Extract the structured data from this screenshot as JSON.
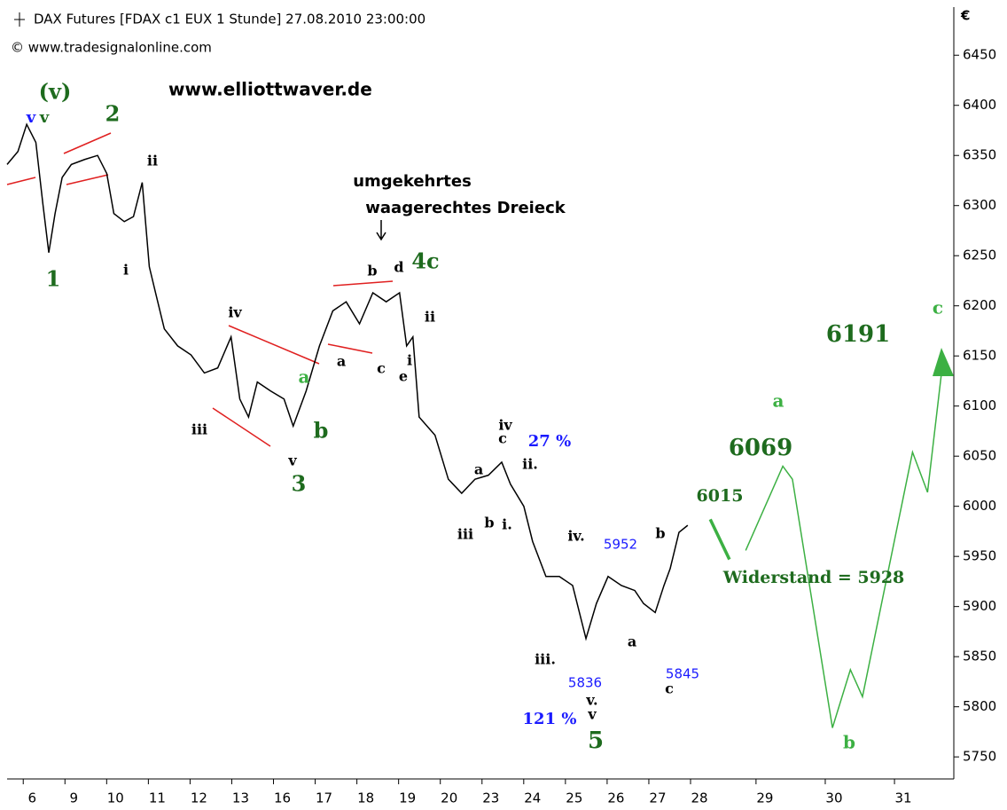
{
  "chart_data": {
    "type": "line",
    "title": "DAX Futures [FDAX c1 EUX  1 Stunde] 27.08.2010 23:00:00",
    "subtitle": "© www.tradesignalonline.com",
    "watermark": "www.elliottwaver.de",
    "y_label": "€",
    "xlim": [
      -0.6,
      22.1
    ],
    "ylim": [
      5728,
      6498
    ],
    "yticks": [
      5750,
      5800,
      5850,
      5900,
      5950,
      6000,
      6050,
      6100,
      6150,
      6200,
      6250,
      6300,
      6350,
      6400,
      6450
    ],
    "xticks": [
      {
        "value": 0,
        "label": "6"
      },
      {
        "value": 1,
        "label": "9"
      },
      {
        "value": 2,
        "label": "10"
      },
      {
        "value": 3,
        "label": "11"
      },
      {
        "value": 4,
        "label": "12"
      },
      {
        "value": 5,
        "label": "13"
      },
      {
        "value": 6,
        "label": "16"
      },
      {
        "value": 7,
        "label": "17"
      },
      {
        "value": 8,
        "label": "18"
      },
      {
        "value": 9,
        "label": "19"
      },
      {
        "value": 10,
        "label": "20"
      },
      {
        "value": 11,
        "label": "23"
      },
      {
        "value": 12,
        "label": "24"
      },
      {
        "value": 13,
        "label": "25"
      },
      {
        "value": 14,
        "label": "26"
      },
      {
        "value": 15,
        "label": "27"
      },
      {
        "value": 16,
        "label": "28"
      },
      {
        "value": 17.57,
        "label": "29"
      },
      {
        "value": 19.23,
        "label": "30"
      },
      {
        "value": 20.89,
        "label": "31"
      }
    ],
    "series": [
      {
        "color": "#000000",
        "x": [
          -0.6,
          -0.34,
          -0.13,
          0.09,
          0.26,
          0.4,
          0.55,
          0.72,
          0.94,
          1.26,
          1.57,
          1.79,
          1.96,
          2.21,
          2.43,
          2.64,
          2.81,
          2.96,
          3.17,
          3.49,
          3.81,
          4.13,
          4.45,
          4.77,
          4.98,
          5.19,
          5.4,
          5.72,
          6.04,
          6.26,
          6.57,
          6.89,
          7.21,
          7.53,
          7.85,
          8.17,
          8.49,
          8.81,
          8.98,
          9.13,
          9.28,
          9.66,
          9.98,
          10.3,
          10.62,
          10.94,
          11.26,
          11.47,
          11.79,
          12.0,
          12.32,
          12.64,
          12.96,
          13.28,
          13.53,
          13.81,
          14.13,
          14.45,
          14.66,
          14.94,
          15.15,
          15.3,
          15.51,
          15.72
        ],
        "values": [
          6341,
          6354,
          6381,
          6363,
          6301,
          6253,
          6292,
          6328,
          6341,
          6346,
          6350,
          6332,
          6292,
          6284,
          6289,
          6323,
          6239,
          6213,
          6177,
          6160,
          6151,
          6133,
          6138,
          6169,
          6107,
          6089,
          6124,
          6115,
          6107,
          6080,
          6115,
          6160,
          6195,
          6204,
          6182,
          6213,
          6204,
          6213,
          6160,
          6169,
          6089,
          6071,
          6027,
          6013,
          6027,
          6031,
          6044,
          6022,
          6000,
          5965,
          5930,
          5930,
          5921,
          5868,
          5903,
          5930,
          5921,
          5916,
          5903,
          5894,
          5921,
          5938,
          5974,
          5981
        ]
      },
      {
        "color": "#3cb043",
        "x": [
          16.26,
          16.72
        ],
        "values": [
          5987,
          5947
        ]
      },
      {
        "color": "#3cb043",
        "x": [
          17.11,
          18.0,
          18.23,
          19.19,
          19.62,
          19.91,
          21.11,
          21.47,
          21.83
        ],
        "values": [
          5956,
          6040,
          6027,
          5779,
          5837,
          5810,
          6054,
          6014,
          6142
        ]
      }
    ],
    "annotations": [
      "(v)",
      "v",
      "v",
      "2",
      "ii",
      "1",
      "i",
      "iv",
      "iii",
      "v",
      "3",
      "a",
      "b",
      "a",
      "b",
      "c",
      "d",
      "4c",
      "e",
      "i",
      "ii",
      "iv",
      "c",
      "27 %",
      "ii.",
      "a",
      "b",
      "i.",
      "iii",
      "iv.",
      "5952",
      "b",
      "a",
      "iii.",
      "5836",
      "5845",
      "c",
      "v.",
      "121 %",
      "v",
      "5",
      "6015",
      "Widerstand = 5928",
      "6069",
      "a",
      "6191",
      "c",
      "b",
      "umgekehrtes",
      "waagerechtes Dreieck"
    ]
  }
}
